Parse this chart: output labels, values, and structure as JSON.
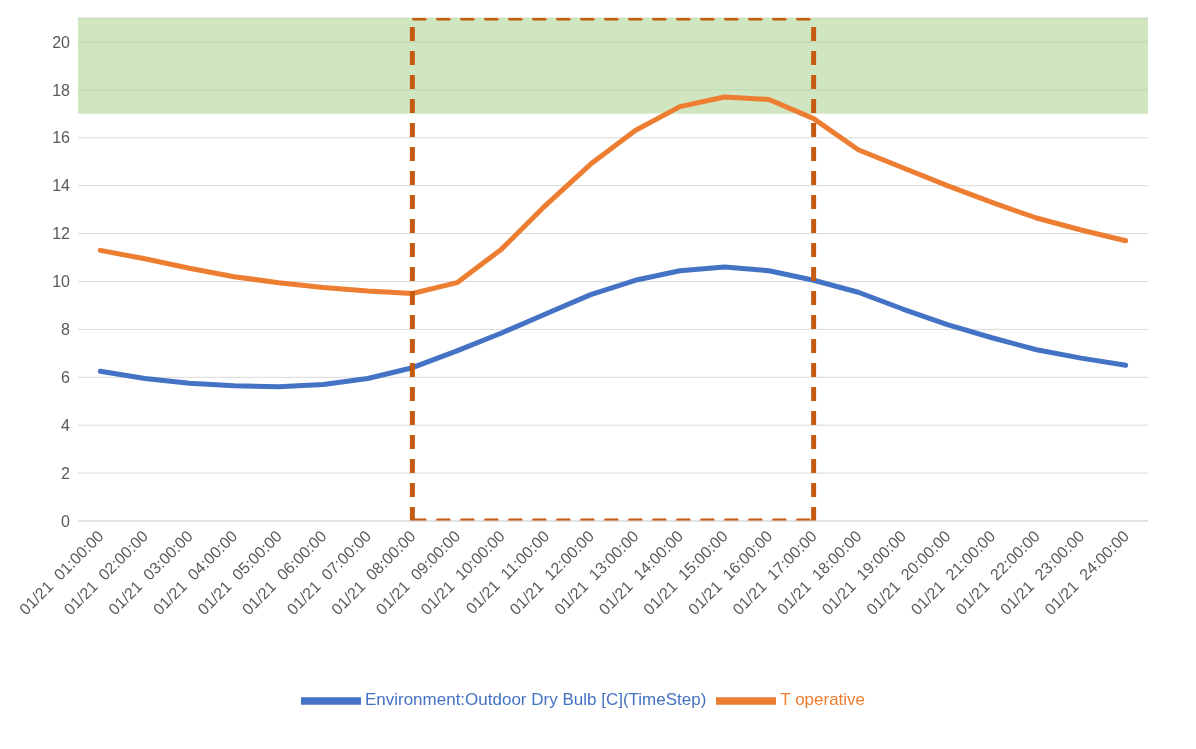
{
  "chart_data": {
    "type": "line",
    "categories": [
      "01/21  01:00:00",
      "01/21  02:00:00",
      "01/21  03:00:00",
      "01/21  04:00:00",
      "01/21  05:00:00",
      "01/21  06:00:00",
      "01/21  07:00:00",
      "01/21  08:00:00",
      "01/21  09:00:00",
      "01/21  10:00:00",
      "01/21  11:00:00",
      "01/21  12:00:00",
      "01/21  13:00:00",
      "01/21  14:00:00",
      "01/21  15:00:00",
      "01/21  16:00:00",
      "01/21  17:00:00",
      "01/21  18:00:00",
      "01/21  19:00:00",
      "01/21  20:00:00",
      "01/21  21:00:00",
      "01/21  22:00:00",
      "01/21  23:00:00",
      "01/21  24:00:00"
    ],
    "series": [
      {
        "name": "Environment:Outdoor Dry Bulb [C](TimeStep)",
        "color": "#4472c4",
        "values": [
          6.25,
          5.95,
          5.75,
          5.65,
          5.6,
          5.7,
          5.95,
          6.4,
          7.1,
          7.85,
          8.65,
          9.45,
          10.05,
          10.45,
          10.6,
          10.45,
          10.05,
          9.55,
          8.85,
          8.2,
          7.65,
          7.15,
          6.8,
          6.5
        ]
      },
      {
        "name": "T operative",
        "color": "#ed7d31",
        "values": [
          11.3,
          10.95,
          10.55,
          10.2,
          9.95,
          9.75,
          9.6,
          9.5,
          9.95,
          11.35,
          13.2,
          14.9,
          16.3,
          17.3,
          17.7,
          17.6,
          16.8,
          15.5,
          14.75,
          14.0,
          13.3,
          12.65,
          12.15,
          11.7
        ]
      }
    ],
    "ylim": [
      0,
      21
    ],
    "yticks": [
      0,
      2,
      4,
      6,
      8,
      10,
      12,
      14,
      16,
      18,
      20
    ],
    "grid": "y",
    "legend": "bottom",
    "marker": "none",
    "line_style": "solid",
    "bands": [
      {
        "axis": "y",
        "from": 17,
        "to": 21,
        "color": "#a9d18e"
      }
    ],
    "ref_lines": [
      {
        "axis": "x",
        "value": "01/21  08:00:00",
        "color": "#c55a11",
        "line_style": "dashed"
      },
      {
        "axis": "x",
        "value": "01/21  17:00:00",
        "color": "#c55a11",
        "line_style": "dashed"
      }
    ]
  }
}
